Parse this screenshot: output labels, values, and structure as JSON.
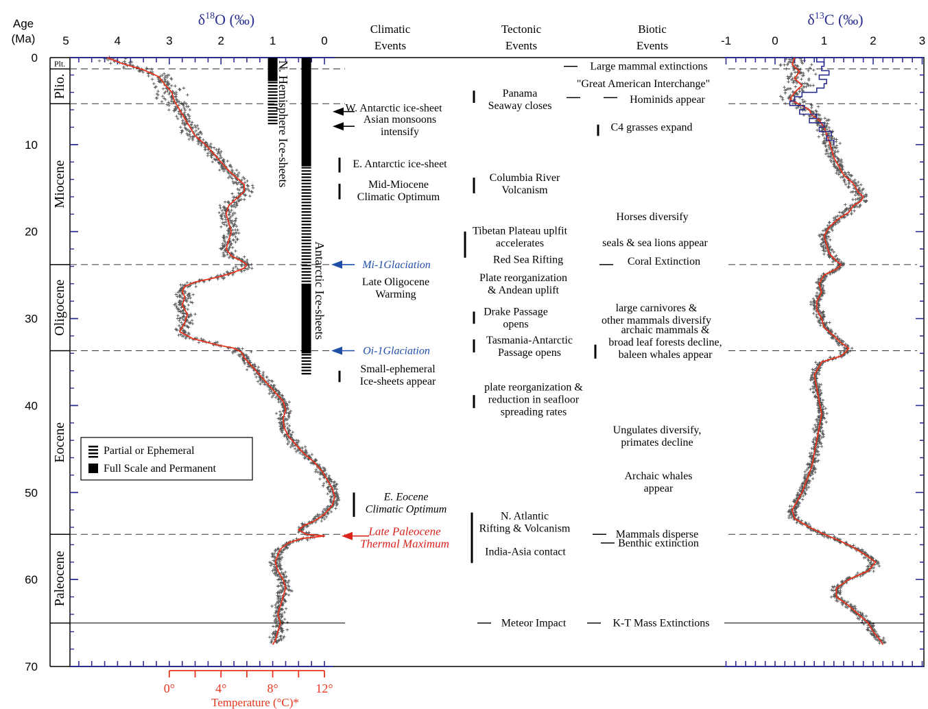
{
  "chart_data": {
    "type": "scatter",
    "colors": {
      "frame": "#000000",
      "axis_blue": "#2a2f8f",
      "curve": "#e8341c",
      "temp": "#e8341c",
      "scatter": "#555555",
      "blue_line": "#2a2f8f",
      "glaciation_blue": "#1f4fa8",
      "petm_red": "#d9231b"
    },
    "age_axis": {
      "label_line1": "Age",
      "label_line2": "(Ma)",
      "range": [
        0,
        70
      ],
      "ticks": [
        0,
        10,
        20,
        30,
        40,
        50,
        60,
        70
      ],
      "tick_labels": [
        "0",
        "10",
        "20",
        "30",
        "40",
        "50",
        "60",
        "70"
      ]
    },
    "d18o_axis": {
      "label_symbol": "δ",
      "label_sup": "18",
      "label_rest": "O (‰)",
      "range": [
        5,
        -0.5
      ],
      "ticks": [
        5,
        4,
        3,
        2,
        1,
        0
      ],
      "tick_labels": [
        "5",
        "4",
        "3",
        "2",
        "1",
        "0"
      ]
    },
    "d13c_axis": {
      "label_symbol": "δ",
      "label_sup": "13",
      "label_rest": "C (‰)",
      "range": [
        -1,
        3
      ],
      "ticks": [
        -1,
        0,
        1,
        2,
        3
      ],
      "tick_labels": [
        "-1",
        "0",
        "1",
        "2",
        "3"
      ]
    },
    "temperature_axis": {
      "label": "Temperature (°C)*",
      "ticks": [
        0,
        4,
        8,
        12
      ],
      "tick_labels": [
        "0°",
        "4°",
        "8°",
        "12°"
      ],
      "d18o_at_0C": 3.0,
      "d18o_per_degree": 0.25
    },
    "epochs": [
      {
        "name": "Plt.",
        "start": 0,
        "end": 1.3
      },
      {
        "name": "Plio.",
        "start": 1.3,
        "end": 5.3
      },
      {
        "name": "Miocene",
        "start": 5.3,
        "end": 23.8
      },
      {
        "name": "Oligocene",
        "start": 23.8,
        "end": 33.7
      },
      {
        "name": "Eocene",
        "start": 33.7,
        "end": 54.8
      },
      {
        "name": "Paleocene",
        "start": 54.8,
        "end": 65.0
      }
    ],
    "dashed_boundaries": [
      1.3,
      5.3,
      23.8,
      33.7,
      54.8
    ],
    "solid_boundary": 65.0,
    "ice_sheets": {
      "northern_label": "N. Hemisphere Ice-sheets",
      "antarctic_label": "Antarctic Ice-sheets",
      "northern": {
        "full": [
          0,
          2.7
        ],
        "partial": [
          2.7,
          7.5
        ],
        "d18o_x": 1.0
      },
      "antarctic": {
        "full": [
          [
            0,
            12.5
          ],
          [
            26,
            34
          ]
        ],
        "partial": [
          [
            12.5,
            26
          ],
          [
            34,
            36.5
          ]
        ],
        "d18o_x": 0.35
      }
    },
    "legend": {
      "partial": "Partial or Ephemeral",
      "full": "Full Scale and Permanent"
    },
    "column_headers": {
      "climatic": [
        "Climatic",
        "Events"
      ],
      "tectonic": [
        "Tectonic",
        "Events"
      ],
      "biotic": [
        "Biotic",
        "Events"
      ]
    },
    "climatic_events": [
      {
        "lines": [
          "W. Antarctic ice-sheet"
        ],
        "age": 5.8,
        "marker": "arrow-black",
        "marker_age": 6.2
      },
      {
        "lines": [
          "Asian monsoons",
          "intensify"
        ],
        "age": 7.8,
        "marker": "arrow-black",
        "marker_age": 7.9
      },
      {
        "lines": [
          "E. Antarctic ice-sheet"
        ],
        "age": 12.2,
        "marker": "bar",
        "bar": [
          11.5,
          13.2
        ]
      },
      {
        "lines": [
          "Mid-Miocene",
          "Climatic Optimum"
        ],
        "age": 15.3,
        "marker": "bar",
        "bar": [
          14.5,
          16.3
        ]
      },
      {
        "lines": [
          "Mi-1Glaciation"
        ],
        "age": 23.8,
        "marker": "arrow-blue",
        "marker_age": 23.8,
        "style": "blue-italic"
      },
      {
        "lines": [
          "Late Oligocene",
          "Warming"
        ],
        "age": 26.5
      },
      {
        "lines": [
          "Oi-1Glaciation"
        ],
        "age": 33.7,
        "marker": "arrow-blue",
        "marker_age": 33.7,
        "style": "blue-italic"
      },
      {
        "lines": [
          "Small-ephemeral",
          "Ice-sheets appear"
        ],
        "age": 36.5,
        "marker": "bar",
        "bar": [
          36.0,
          37.3
        ]
      },
      {
        "lines": [
          "E. Eocene",
          "Climatic Optimum"
        ],
        "age": 51.2,
        "marker": "bar",
        "bar": [
          50.0,
          52.8
        ],
        "style": "italic"
      },
      {
        "lines": [
          "Late Paleocene",
          "Thermal Maximum"
        ],
        "age": 55.2,
        "marker": "arrow-red",
        "marker_age": 55.0,
        "style": "red-italic"
      }
    ],
    "tectonic_events": [
      {
        "lines": [
          "Panama",
          "Seaway closes"
        ],
        "age": 4.8,
        "bar": [
          3.8,
          5.2
        ]
      },
      {
        "lines": [
          "Columbia River",
          "Volcanism"
        ],
        "age": 14.5,
        "bar": [
          13.8,
          15.6
        ]
      },
      {
        "lines": [
          "Tibetan Plateau uplfit",
          "accelerates"
        ],
        "age": 20.6,
        "bar": [
          20.0,
          23.0
        ]
      },
      {
        "lines": [
          "Red Sea Rifting"
        ],
        "age": 23.2
      },
      {
        "lines": [
          "Plate reorganization",
          "& Andean uplift"
        ],
        "age": 26.0
      },
      {
        "lines": [
          "Drake Passage",
          "opens"
        ],
        "age": 29.9,
        "bar": [
          29.2,
          30.6
        ]
      },
      {
        "lines": [
          "Tasmania-Antarctic",
          "Passage opens"
        ],
        "age": 33.2,
        "bar": [
          32.4,
          33.9
        ]
      },
      {
        "lines": [
          "plate reorganization &",
          "reduction in seafloor",
          "spreading rates"
        ],
        "age": 39.3,
        "bar": [
          38.8,
          40.3
        ]
      },
      {
        "lines": [
          "N. Atlantic",
          "Rifting & Volcanism"
        ],
        "age": 53.4,
        "bar": [
          52.3,
          58.1
        ]
      },
      {
        "lines": [
          "India-Asia contact"
        ],
        "age": 56.8
      },
      {
        "lines": [
          "Meteor Impact"
        ],
        "age": 65.0,
        "dash": true
      }
    ],
    "biotic_events": [
      {
        "lines": [
          "Large mammal extinctions"
        ],
        "age": 1.0,
        "dash": true
      },
      {
        "lines": [
          "\"Great American Interchange\""
        ],
        "age": 3.0,
        "dash": true,
        "dash_age": 4.6
      },
      {
        "lines": [
          "Hominids appear"
        ],
        "age": 4.8,
        "dash": true,
        "dash_age": 4.6
      },
      {
        "lines": [
          "C4 grasses expand"
        ],
        "age": 8.0,
        "bar": [
          7.7,
          9.0
        ]
      },
      {
        "lines": [
          "Horses diversify"
        ],
        "age": 18.3
      },
      {
        "lines": [
          "seals & sea lions appear"
        ],
        "age": 21.3
      },
      {
        "lines": [
          "Coral Extinction"
        ],
        "age": 23.4,
        "dash": true,
        "dash_age": 23.8
      },
      {
        "lines": [
          "large carnivores &",
          "other mammals diversify"
        ],
        "age": 29.5
      },
      {
        "lines": [
          "archaic mammals &",
          "broad leaf forests decline,",
          "baleen whales appear"
        ],
        "age": 32.7,
        "bar": [
          33.0,
          34.6
        ]
      },
      {
        "lines": [
          "Ungulates diversify,",
          "primates decline"
        ],
        "age": 43.5
      },
      {
        "lines": [
          "Archaic whales",
          "appear"
        ],
        "age": 48.8
      },
      {
        "lines": [
          "Mammals disperse"
        ],
        "age": 54.8,
        "dash": true
      },
      {
        "lines": [
          "Benthic extinction"
        ],
        "age": 55.8,
        "dash": true
      },
      {
        "lines": [
          "K-T Mass Extinctions"
        ],
        "age": 65.0,
        "dash": true
      }
    ],
    "d18o_curve": {
      "age": [
        0.0,
        0.7,
        1.4,
        2.2,
        3.0,
        4.0,
        5.0,
        6.0,
        7.0,
        8.0,
        9.0,
        10.0,
        11.0,
        12.0,
        13.0,
        13.8,
        14.6,
        15.4,
        16.2,
        17.0,
        18.0,
        19.0,
        20.0,
        21.0,
        22.0,
        22.8,
        23.4,
        23.8,
        24.2,
        24.8,
        25.3,
        25.8,
        26.3,
        26.9,
        27.5,
        28.5,
        29.5,
        30.5,
        31.5,
        32.3,
        33.0,
        33.4,
        33.9,
        34.5,
        35.5,
        36.5,
        37.5,
        38.5,
        39.5,
        40.5,
        41.5,
        42.5,
        43.5,
        44.5,
        45.5,
        46.5,
        47.5,
        48.5,
        49.5,
        50.5,
        51.5,
        52.5,
        53.3,
        53.8,
        54.3,
        54.8,
        55.0,
        55.3,
        55.8,
        56.5,
        57.2,
        58.0,
        59.0,
        60.0,
        61.0,
        62.0,
        63.0,
        64.0,
        65.0,
        66.0,
        67.0,
        67.5
      ],
      "value": [
        4.2,
        3.9,
        3.5,
        3.2,
        3.1,
        2.95,
        2.9,
        2.8,
        2.7,
        2.6,
        2.5,
        2.3,
        2.15,
        2.0,
        1.85,
        1.7,
        1.55,
        1.55,
        1.7,
        1.85,
        1.9,
        1.85,
        1.8,
        1.85,
        1.9,
        1.8,
        1.6,
        1.5,
        1.55,
        1.8,
        2.1,
        2.5,
        2.7,
        2.75,
        2.7,
        2.75,
        2.65,
        2.7,
        2.8,
        2.55,
        2.1,
        1.75,
        1.6,
        1.55,
        1.4,
        1.25,
        1.1,
        0.95,
        0.8,
        0.75,
        0.8,
        0.78,
        0.7,
        0.55,
        0.4,
        0.2,
        0.05,
        -0.05,
        -0.15,
        -0.2,
        -0.15,
        0.0,
        0.2,
        0.4,
        0.5,
        0.35,
        0.0,
        0.45,
        0.7,
        0.85,
        0.9,
        0.95,
        0.9,
        0.8,
        0.75,
        0.8,
        0.85,
        0.9,
        0.85,
        0.9,
        0.95,
        1.0
      ]
    },
    "d13c_curve": {
      "age": [
        0.0,
        0.8,
        1.6,
        2.4,
        3.2,
        4.0,
        4.8,
        5.4,
        6.0,
        6.6,
        7.2,
        8.0,
        8.8,
        9.6,
        10.5,
        11.5,
        12.5,
        13.5,
        14.5,
        15.5,
        16.0,
        16.5,
        17.0,
        17.8,
        18.5,
        19.5,
        20.5,
        21.5,
        22.5,
        23.4,
        23.8,
        24.3,
        25.0,
        26.0,
        27.0,
        28.0,
        29.0,
        30.0,
        31.0,
        32.0,
        32.8,
        33.4,
        33.8,
        34.3,
        35.0,
        36.5,
        38.0,
        39.5,
        41.0,
        42.5,
        44.0,
        45.5,
        47.0,
        48.5,
        50.0,
        51.0,
        52.0,
        53.0,
        54.0,
        54.8,
        55.5,
        56.3,
        57.2,
        58.0,
        59.0,
        60.0,
        61.0,
        62.0,
        63.0,
        64.0,
        65.0,
        66.0,
        67.0,
        67.5
      ],
      "value": [
        0.4,
        0.35,
        0.5,
        0.4,
        0.55,
        0.4,
        0.3,
        0.5,
        0.7,
        0.75,
        0.9,
        1.0,
        1.05,
        1.1,
        1.15,
        1.2,
        1.3,
        1.4,
        1.6,
        1.7,
        1.8,
        1.75,
        1.6,
        1.5,
        1.3,
        1.1,
        1.0,
        1.05,
        1.1,
        1.25,
        1.35,
        1.25,
        1.0,
        0.9,
        0.95,
        0.85,
        0.85,
        0.95,
        1.0,
        1.2,
        1.35,
        1.5,
        1.45,
        1.35,
        0.95,
        0.8,
        0.85,
        0.9,
        0.95,
        0.9,
        0.85,
        0.8,
        0.75,
        0.65,
        0.55,
        0.45,
        0.35,
        0.4,
        0.7,
        1.0,
        1.3,
        1.6,
        1.85,
        2.05,
        1.9,
        1.5,
        1.25,
        1.25,
        1.5,
        1.7,
        1.9,
        2.0,
        2.15,
        2.2
      ]
    },
    "d13c_blue_line": {
      "age": [
        0.0,
        0.5,
        1.0,
        1.5,
        2.0,
        2.5,
        3.0,
        3.5,
        4.0,
        4.5,
        5.0,
        5.5,
        6.0,
        6.5,
        7.0,
        7.5,
        8.0,
        8.5,
        9.0,
        9.5,
        10.0
      ],
      "value": [
        0.85,
        1.0,
        0.95,
        1.1,
        0.9,
        1.05,
        1.0,
        0.85,
        0.55,
        0.4,
        0.3,
        0.6,
        0.5,
        0.85,
        0.7,
        1.0,
        0.9,
        1.15,
        1.05,
        1.2,
        1.2
      ]
    }
  }
}
